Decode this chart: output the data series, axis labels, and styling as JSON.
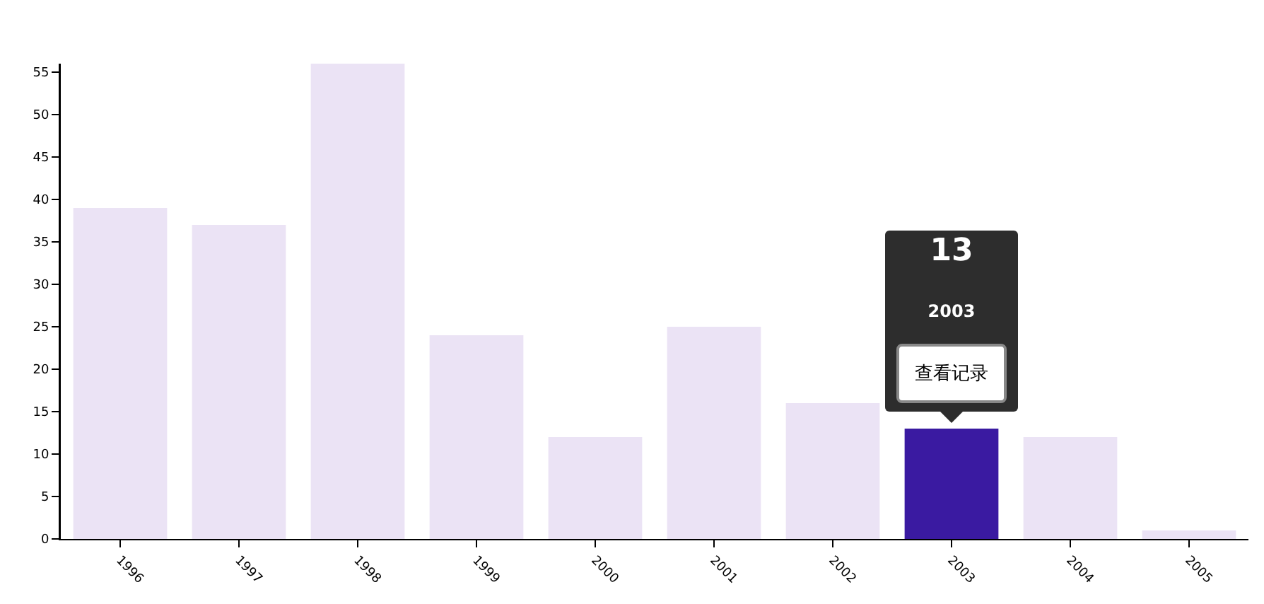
{
  "chart_data": {
    "type": "bar",
    "categories": [
      "1996",
      "1997",
      "1998",
      "1999",
      "2000",
      "2001",
      "2002",
      "2003",
      "2004",
      "2005"
    ],
    "values": [
      39,
      37,
      56,
      24,
      12,
      25,
      16,
      13,
      12,
      1
    ],
    "colors": [
      "#ebe3f5",
      "#ebe3f5",
      "#ebe3f5",
      "#ebe3f5",
      "#ebe3f5",
      "#ebe3f5",
      "#ebe3f5",
      "#3a1aa1",
      "#ebe3f5",
      "#ebe3f5"
    ],
    "ylim": [
      0,
      56
    ],
    "yticks": [
      0,
      5,
      10,
      15,
      20,
      25,
      30,
      35,
      40,
      45,
      50,
      55
    ],
    "annotations": [
      "13",
      "2003",
      "查看记录"
    ]
  }
}
